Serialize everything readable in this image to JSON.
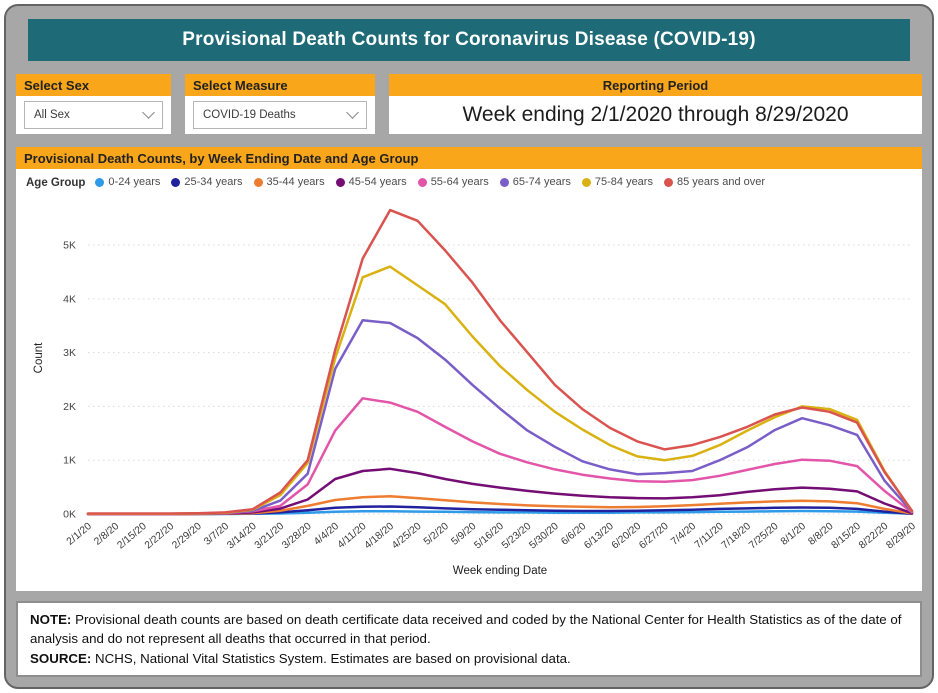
{
  "page": {
    "title": "Provisional Death Counts for Coronavirus Disease (COVID-19)"
  },
  "filters": {
    "sex": {
      "label": "Select Sex",
      "value": "All Sex"
    },
    "measure": {
      "label": "Select Measure",
      "value": "COVID-19 Deaths"
    },
    "reporting_period": {
      "label": "Reporting Period",
      "value": "Week ending 2/1/2020 through 8/29/2020"
    }
  },
  "chart": {
    "panel_title": "Provisional Death Counts, by Week Ending Date and Age Group",
    "legend_title": "Age Group"
  },
  "chart_data": {
    "type": "line",
    "title": "Provisional Death Counts, by Week Ending Date and Age Group",
    "xlabel": "Week ending Date",
    "ylabel": "Count",
    "ylim": [
      0,
      5800
    ],
    "yticks": [
      0,
      1000,
      2000,
      3000,
      4000,
      5000
    ],
    "ytick_labels": [
      "0K",
      "1K",
      "2K",
      "3K",
      "4K",
      "5K"
    ],
    "grid": true,
    "legend_position": "top",
    "categories": [
      "2/1/20",
      "2/8/20",
      "2/15/20",
      "2/22/20",
      "2/29/20",
      "3/7/20",
      "3/14/20",
      "3/21/20",
      "3/28/20",
      "4/4/20",
      "4/11/20",
      "4/18/20",
      "4/25/20",
      "5/2/20",
      "5/9/20",
      "5/16/20",
      "5/23/20",
      "5/30/20",
      "6/6/20",
      "6/13/20",
      "6/20/20",
      "6/27/20",
      "7/4/20",
      "7/11/20",
      "7/18/20",
      "7/25/20",
      "8/1/20",
      "8/8/20",
      "8/15/20",
      "8/22/20",
      "8/29/20"
    ],
    "series": [
      {
        "name": "0-24 years",
        "color": "#2D9BE8",
        "values": [
          0,
          0,
          0,
          0,
          0,
          0,
          5,
          10,
          25,
          40,
          50,
          50,
          45,
          40,
          35,
          30,
          30,
          25,
          25,
          25,
          30,
          30,
          35,
          40,
          45,
          50,
          55,
          50,
          45,
          25,
          5
        ]
      },
      {
        "name": "25-34 years",
        "color": "#21219E",
        "values": [
          0,
          0,
          0,
          0,
          0,
          5,
          10,
          30,
          70,
          115,
          135,
          140,
          125,
          105,
          90,
          80,
          70,
          60,
          55,
          55,
          60,
          70,
          80,
          95,
          105,
          115,
          120,
          115,
          95,
          45,
          5
        ]
      },
      {
        "name": "35-44 years",
        "color": "#ED7D31",
        "values": [
          0,
          0,
          0,
          0,
          0,
          5,
          15,
          60,
          150,
          260,
          310,
          330,
          295,
          255,
          215,
          185,
          160,
          145,
          135,
          125,
          130,
          145,
          165,
          190,
          215,
          235,
          245,
          235,
          200,
          95,
          10
        ]
      },
      {
        "name": "45-54 years",
        "color": "#740D74",
        "values": [
          0,
          0,
          0,
          0,
          5,
          10,
          30,
          100,
          270,
          650,
          800,
          840,
          760,
          650,
          560,
          490,
          430,
          380,
          340,
          310,
          295,
          290,
          310,
          350,
          410,
          460,
          490,
          470,
          420,
          195,
          15
        ]
      },
      {
        "name": "55-64 years",
        "color": "#E255A9",
        "values": [
          0,
          0,
          0,
          0,
          5,
          15,
          50,
          150,
          550,
          1550,
          2150,
          2070,
          1900,
          1620,
          1350,
          1120,
          960,
          830,
          730,
          660,
          610,
          600,
          630,
          710,
          820,
          930,
          1010,
          990,
          890,
          430,
          30
        ]
      },
      {
        "name": "65-74 years",
        "color": "#7A5EC8",
        "values": [
          5,
          5,
          5,
          5,
          10,
          20,
          60,
          250,
          750,
          2700,
          3600,
          3550,
          3270,
          2870,
          2400,
          1960,
          1550,
          1250,
          980,
          830,
          740,
          760,
          800,
          1000,
          1240,
          1560,
          1780,
          1650,
          1470,
          620,
          40
        ]
      },
      {
        "name": "75-84 years",
        "color": "#D9B211",
        "values": [
          5,
          5,
          5,
          5,
          10,
          25,
          80,
          350,
          950,
          2900,
          4400,
          4600,
          4250,
          3900,
          3300,
          2750,
          2300,
          1900,
          1570,
          1280,
          1070,
          1000,
          1080,
          1280,
          1550,
          1800,
          2000,
          1950,
          1750,
          800,
          50
        ]
      },
      {
        "name": "85 years and over",
        "color": "#D9534F",
        "values": [
          10,
          10,
          10,
          10,
          15,
          30,
          90,
          400,
          1000,
          3050,
          4750,
          5650,
          5450,
          4900,
          4300,
          3600,
          3000,
          2400,
          1950,
          1600,
          1350,
          1200,
          1280,
          1430,
          1620,
          1850,
          1980,
          1900,
          1700,
          780,
          60
        ]
      }
    ]
  },
  "note": {
    "note_label": "NOTE:",
    "note_text": "Provisional death counts are based on death certificate data received and coded by the National Center for Health Statistics as of the date of analysis and do not represent all deaths that occurred in that period.",
    "source_label": "SOURCE:",
    "source_text": "NCHS, National Vital Statistics System. Estimates are based on provisional data."
  },
  "colors": {
    "header_bg": "#1E6A76",
    "accent_orange": "#F9A61A",
    "page_bg": "#A7A7A7"
  }
}
